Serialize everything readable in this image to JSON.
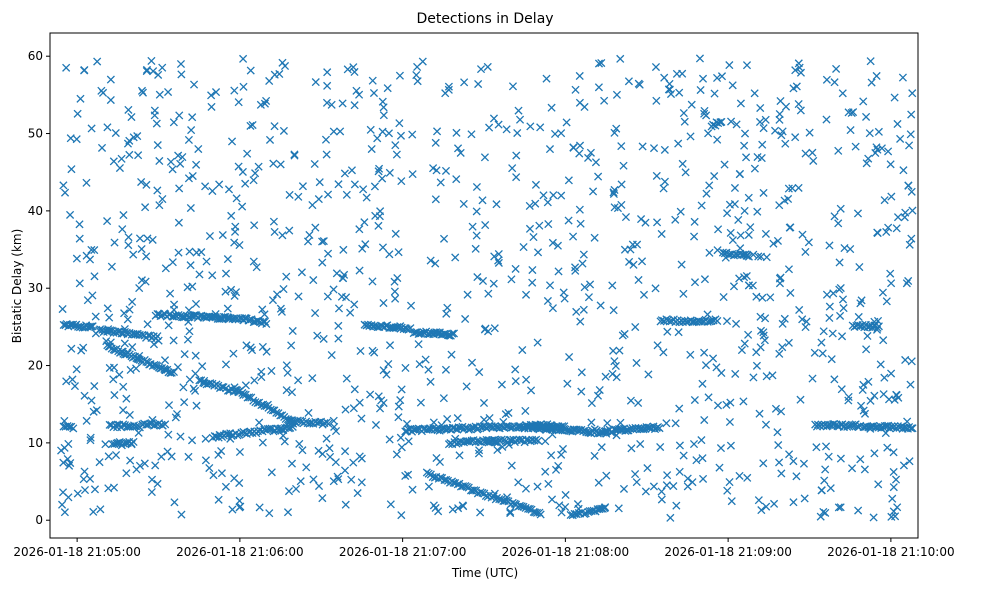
{
  "chart_data": {
    "type": "scatter",
    "title": "Detections in Delay",
    "xlabel": "Time (UTC)",
    "ylabel": "Bistatic Delay (km)",
    "marker": "x",
    "color": "#1f77b4",
    "x_unit": "seconds since 2026-01-18 21:04:50",
    "xlim": [
      0,
      320
    ],
    "ylim": [
      -2.3,
      63
    ],
    "xticks": [
      {
        "value": 10,
        "label": "2026-01-18 21:05:00"
      },
      {
        "value": 70,
        "label": "2026-01-18 21:06:00"
      },
      {
        "value": 130,
        "label": "2026-01-18 21:07:00"
      },
      {
        "value": 190,
        "label": "2026-01-18 21:08:00"
      },
      {
        "value": 250,
        "label": "2026-01-18 21:09:00"
      },
      {
        "value": 310,
        "label": "2026-01-18 21:10:00"
      }
    ],
    "yticks": [
      {
        "value": 0,
        "label": "0"
      },
      {
        "value": 10,
        "label": "10"
      },
      {
        "value": 20,
        "label": "20"
      },
      {
        "value": 30,
        "label": "30"
      },
      {
        "value": 40,
        "label": "40"
      },
      {
        "value": 50,
        "label": "50"
      },
      {
        "value": 60,
        "label": "60"
      }
    ],
    "tracks": [
      {
        "name": "track-1",
        "x_start": 5,
        "x_end": 16,
        "y_start": 25.2,
        "y_end": 25.0,
        "step": 0.6
      },
      {
        "name": "track-2",
        "x_start": 18,
        "x_end": 33,
        "y_start": 24.6,
        "y_end": 24.0,
        "step": 0.6
      },
      {
        "name": "track-3",
        "x_start": 34,
        "x_end": 40,
        "y_start": 23.8,
        "y_end": 23.6,
        "step": 0.7
      },
      {
        "name": "track-4",
        "x_start": 21,
        "x_end": 46,
        "y_start": 22.5,
        "y_end": 19.0,
        "step": 0.6
      },
      {
        "name": "track-5",
        "x_start": 39,
        "x_end": 72,
        "y_start": 26.6,
        "y_end": 26.0,
        "step": 0.6
      },
      {
        "name": "track-6",
        "x_start": 72,
        "x_end": 80,
        "y_start": 26.0,
        "y_end": 25.5,
        "step": 0.6
      },
      {
        "name": "track-7",
        "x_start": 5,
        "x_end": 9,
        "y_start": 12.2,
        "y_end": 12.0,
        "step": 0.7
      },
      {
        "name": "track-8",
        "x_start": 22,
        "x_end": 33,
        "y_start": 12.2,
        "y_end": 12.2,
        "step": 0.7
      },
      {
        "name": "track-9",
        "x_start": 34,
        "x_end": 43,
        "y_start": 12.4,
        "y_end": 12.4,
        "step": 0.7
      },
      {
        "name": "track-10",
        "x_start": 23,
        "x_end": 31,
        "y_start": 9.8,
        "y_end": 10.0,
        "step": 0.7
      },
      {
        "name": "track-11",
        "x_start": 55,
        "x_end": 70,
        "y_start": 18.0,
        "y_end": 16.5,
        "step": 0.7
      },
      {
        "name": "track-12",
        "x_start": 68,
        "x_end": 90,
        "y_start": 17.0,
        "y_end": 12.5,
        "step": 0.7
      },
      {
        "name": "track-13",
        "x_start": 60,
        "x_end": 90,
        "y_start": 10.8,
        "y_end": 12.0,
        "step": 0.7
      },
      {
        "name": "track-14",
        "x_start": 88,
        "x_end": 103,
        "y_start": 12.8,
        "y_end": 12.5,
        "step": 0.7
      },
      {
        "name": "track-15",
        "x_start": 116,
        "x_end": 133,
        "y_start": 25.3,
        "y_end": 24.8,
        "step": 0.6
      },
      {
        "name": "track-16",
        "x_start": 134,
        "x_end": 149,
        "y_start": 24.3,
        "y_end": 24.0,
        "step": 0.6
      },
      {
        "name": "track-17",
        "x_start": 131,
        "x_end": 185,
        "y_start": 11.6,
        "y_end": 12.3,
        "step": 0.6
      },
      {
        "name": "track-18",
        "x_start": 178,
        "x_end": 205,
        "y_start": 12.0,
        "y_end": 11.3,
        "step": 0.6
      },
      {
        "name": "track-19",
        "x_start": 205,
        "x_end": 225,
        "y_start": 11.5,
        "y_end": 12.0,
        "step": 0.6
      },
      {
        "name": "track-20",
        "x_start": 147,
        "x_end": 165,
        "y_start": 10.0,
        "y_end": 10.3,
        "step": 0.7
      },
      {
        "name": "track-21",
        "x_start": 161,
        "x_end": 180,
        "y_start": 10.2,
        "y_end": 10.3,
        "step": 0.7
      },
      {
        "name": "track-22",
        "x_start": 139,
        "x_end": 181,
        "y_start": 6.0,
        "y_end": 0.8,
        "step": 0.7
      },
      {
        "name": "track-23",
        "x_start": 192,
        "x_end": 205,
        "y_start": 0.6,
        "y_end": 1.6,
        "step": 0.7
      },
      {
        "name": "track-24",
        "x_start": 175,
        "x_end": 190,
        "y_start": 12.0,
        "y_end": 12.0,
        "step": 0.7
      },
      {
        "name": "track-25",
        "x_start": 225,
        "x_end": 246,
        "y_start": 25.8,
        "y_end": 25.8,
        "step": 0.7
      },
      {
        "name": "track-26",
        "x_start": 244,
        "x_end": 248,
        "y_start": 51.0,
        "y_end": 51.7,
        "step": 0.6
      },
      {
        "name": "track-27",
        "x_start": 282,
        "x_end": 299,
        "y_start": 12.3,
        "y_end": 12.2,
        "step": 0.6
      },
      {
        "name": "track-28",
        "x_start": 300,
        "x_end": 318,
        "y_start": 12.2,
        "y_end": 11.9,
        "step": 0.6
      },
      {
        "name": "track-29",
        "x_start": 296,
        "x_end": 306,
        "y_start": 25.2,
        "y_end": 25.0,
        "step": 0.6
      },
      {
        "name": "track-30",
        "x_start": 248,
        "x_end": 258,
        "y_start": 34.5,
        "y_end": 34.2,
        "step": 0.7
      }
    ],
    "background_clutter": {
      "distribution": "approximately uniform over the plotted time span",
      "x_range": [
        4,
        318
      ],
      "y_range": [
        0.3,
        59.8
      ],
      "approx_count": 1200
    }
  }
}
